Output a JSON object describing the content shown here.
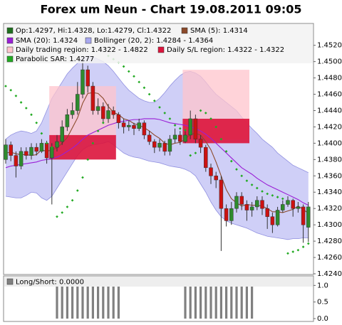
{
  "chart_data": [
    {
      "type": "candlestick",
      "title": "Forex um Neun - Chart 19.08.2011 09:05",
      "legend_label": "Op:1.4297, Hi:1.4328, Lo:1.4279, Cl:1.4322",
      "legend_color": "#1f6f1f",
      "up_color": "#2e8b2e",
      "down_color": "#cc1111",
      "ylim": [
        1.424,
        1.4545
      ],
      "yticks": [
        {
          "value": 1.424,
          "label": "1.4240"
        },
        {
          "value": 1.426,
          "label": "1.4260"
        },
        {
          "value": 1.428,
          "label": "1.4280"
        },
        {
          "value": 1.43,
          "label": "1.4300"
        },
        {
          "value": 1.432,
          "label": "1.4320"
        },
        {
          "value": 1.434,
          "label": "1.4340"
        },
        {
          "value": 1.436,
          "label": "1.4360"
        },
        {
          "value": 1.438,
          "label": "1.4380"
        },
        {
          "value": 1.44,
          "label": "1.4400"
        },
        {
          "value": 1.442,
          "label": "1.4420"
        },
        {
          "value": 1.444,
          "label": "1.4440"
        },
        {
          "value": 1.446,
          "label": "1.4460"
        },
        {
          "value": 1.448,
          "label": "1.4480"
        },
        {
          "value": 1.45,
          "label": "1.4500"
        },
        {
          "value": 1.452,
          "label": "1.4520"
        }
      ],
      "open": [
        1.438,
        1.4398,
        1.4385,
        1.4372,
        1.439,
        1.4385,
        1.4395,
        1.439,
        1.44,
        1.4382,
        1.4395,
        1.4402,
        1.442,
        1.4435,
        1.444,
        1.446,
        1.449,
        1.447,
        1.444,
        1.4445,
        1.443,
        1.444,
        1.4435,
        1.4425,
        1.442,
        1.4422,
        1.4418,
        1.4425,
        1.441,
        1.4402,
        1.4395,
        1.44,
        1.439,
        1.4405,
        1.441,
        1.4402,
        1.441,
        1.443,
        1.4405,
        1.4395,
        1.437,
        1.436,
        1.4355,
        1.432,
        1.4305,
        1.432,
        1.4335,
        1.4325,
        1.4318,
        1.4322,
        1.433,
        1.432,
        1.431,
        1.43,
        1.4318,
        1.4325,
        1.433,
        1.432,
        1.4322,
        1.4297
      ],
      "high": [
        1.4405,
        1.4402,
        1.439,
        1.4395,
        1.4395,
        1.44,
        1.44,
        1.4405,
        1.4403,
        1.44,
        1.441,
        1.4428,
        1.4442,
        1.445,
        1.4475,
        1.4503,
        1.4495,
        1.4475,
        1.4455,
        1.445,
        1.4448,
        1.4445,
        1.4438,
        1.443,
        1.4428,
        1.4425,
        1.443,
        1.4428,
        1.4415,
        1.4405,
        1.4405,
        1.4403,
        1.441,
        1.4418,
        1.4415,
        1.4415,
        1.444,
        1.4435,
        1.441,
        1.4398,
        1.4375,
        1.4365,
        1.436,
        1.4325,
        1.4328,
        1.434,
        1.434,
        1.433,
        1.4328,
        1.4335,
        1.4335,
        1.4325,
        1.4315,
        1.4322,
        1.433,
        1.4335,
        1.4332,
        1.4328,
        1.4325,
        1.4328
      ],
      "low": [
        1.4375,
        1.4378,
        1.4358,
        1.4368,
        1.438,
        1.438,
        1.4385,
        1.4388,
        1.4375,
        1.4325,
        1.439,
        1.4398,
        1.4415,
        1.443,
        1.4435,
        1.4455,
        1.4462,
        1.4435,
        1.4435,
        1.4425,
        1.4425,
        1.443,
        1.4418,
        1.4412,
        1.4415,
        1.441,
        1.4415,
        1.4405,
        1.4398,
        1.4388,
        1.439,
        1.4385,
        1.4385,
        1.44,
        1.4398,
        1.44,
        1.4405,
        1.44,
        1.4388,
        1.4365,
        1.435,
        1.4345,
        1.4268,
        1.4298,
        1.43,
        1.4315,
        1.4318,
        1.4305,
        1.431,
        1.4318,
        1.4312,
        1.4295,
        1.429,
        1.4298,
        1.4315,
        1.4322,
        1.431,
        1.4315,
        1.4278,
        1.4279
      ],
      "close": [
        1.4398,
        1.4385,
        1.4372,
        1.439,
        1.4385,
        1.4395,
        1.439,
        1.44,
        1.4382,
        1.4395,
        1.4402,
        1.442,
        1.4435,
        1.444,
        1.446,
        1.449,
        1.447,
        1.444,
        1.4445,
        1.443,
        1.444,
        1.4435,
        1.4425,
        1.442,
        1.4422,
        1.4418,
        1.4425,
        1.441,
        1.4402,
        1.4395,
        1.44,
        1.439,
        1.4405,
        1.441,
        1.4402,
        1.441,
        1.443,
        1.4405,
        1.4395,
        1.437,
        1.436,
        1.4355,
        1.432,
        1.4305,
        1.432,
        1.4335,
        1.4325,
        1.4318,
        1.4322,
        1.433,
        1.432,
        1.431,
        1.43,
        1.4318,
        1.4325,
        1.433,
        1.432,
        1.4322,
        1.43,
        1.4322
      ],
      "series": [
        {
          "name": "SMA (5): 1.4314",
          "color": "#8b4a2b",
          "values": [
            1.4388,
            1.4389,
            1.4387,
            1.4386,
            1.4386,
            1.4385,
            1.4386,
            1.4392,
            1.439,
            1.4392,
            1.4394,
            1.44,
            1.4407,
            1.4419,
            1.4431,
            1.4449,
            1.4461,
            1.4462,
            1.4461,
            1.4455,
            1.4445,
            1.4438,
            1.4435,
            1.443,
            1.4428,
            1.4424,
            1.4422,
            1.4419,
            1.4415,
            1.441,
            1.4406,
            1.44,
            1.4398,
            1.44,
            1.4401,
            1.4405,
            1.4411,
            1.4412,
            1.441,
            1.4402,
            1.4392,
            1.4377,
            1.436,
            1.4343,
            1.4332,
            1.4327,
            1.4323,
            1.4325,
            1.4324,
            1.4324,
            1.4323,
            1.432,
            1.4316,
            1.4316,
            1.4315,
            1.4317,
            1.4319,
            1.4323,
            1.4319,
            1.4314
          ]
        },
        {
          "name": "SMA (20): 1.4324",
          "color": "#9a1fd6",
          "values": [
            1.437,
            1.4372,
            1.4373,
            1.4374,
            1.4375,
            1.4376,
            1.4377,
            1.4379,
            1.438,
            1.4381,
            1.4383,
            1.4386,
            1.439,
            1.4394,
            1.4399,
            1.4405,
            1.441,
            1.4413,
            1.4416,
            1.4419,
            1.4422,
            1.4424,
            1.4426,
            1.4427,
            1.4428,
            1.4429,
            1.4429,
            1.443,
            1.443,
            1.443,
            1.4429,
            1.4427,
            1.4425,
            1.4424,
            1.4423,
            1.4422,
            1.442,
            1.4418,
            1.4415,
            1.4411,
            1.4406,
            1.44,
            1.4394,
            1.4388,
            1.4382,
            1.4376,
            1.437,
            1.4366,
            1.4362,
            1.4357,
            1.4353,
            1.4349,
            1.4346,
            1.4343,
            1.434,
            1.4337,
            1.4334,
            1.4331,
            1.4327,
            1.4324
          ]
        },
        {
          "name": "Bollinger (20, 2): 1.4284 - 1.4364",
          "color": "#a8a8f0",
          "upper": [
            1.4405,
            1.441,
            1.4413,
            1.4415,
            1.4414,
            1.4412,
            1.4415,
            1.4425,
            1.444,
            1.4455,
            1.4465,
            1.4475,
            1.4485,
            1.4492,
            1.4498,
            1.4505,
            1.4507,
            1.4506,
            1.4503,
            1.45,
            1.4495,
            1.4488,
            1.448,
            1.4472,
            1.4465,
            1.446,
            1.4455,
            1.4452,
            1.445,
            1.445,
            1.4455,
            1.4462,
            1.447,
            1.4477,
            1.4483,
            1.4487,
            1.4488,
            1.4486,
            1.4482,
            1.4475,
            1.4467,
            1.446,
            1.4455,
            1.445,
            1.4445,
            1.444,
            1.4432,
            1.4425,
            1.4418,
            1.4412,
            1.4405,
            1.44,
            1.4395,
            1.4388,
            1.4383,
            1.4378,
            1.4373,
            1.437,
            1.4367,
            1.4364
          ],
          "lower": [
            1.4335,
            1.4334,
            1.4333,
            1.4333,
            1.4336,
            1.434,
            1.4339,
            1.4333,
            1.433,
            1.4335,
            1.4345,
            1.4355,
            1.4365,
            1.4375,
            1.4385,
            1.4392,
            1.4396,
            1.4398,
            1.4399,
            1.44,
            1.4402,
            1.4398,
            1.4393,
            1.4388,
            1.4385,
            1.4383,
            1.4382,
            1.438,
            1.4378,
            1.4377,
            1.4376,
            1.4374,
            1.4372,
            1.4371,
            1.437,
            1.4368,
            1.4365,
            1.436,
            1.435,
            1.434,
            1.4328,
            1.4318,
            1.431,
            1.4305,
            1.4302,
            1.43,
            1.4298,
            1.4296,
            1.4293,
            1.429,
            1.4288,
            1.4286,
            1.4285,
            1.4284,
            1.4283,
            1.4282,
            1.4283,
            1.4283,
            1.4284,
            1.4284
          ]
        },
        {
          "name": "Parabolic SAR: 1.4277",
          "color": "#22aa22",
          "values": [
            1.447,
            1.4465,
            1.4458,
            1.445,
            1.4443,
            1.4435,
            1.4425,
            1.4412,
            1.44,
            1.4395,
            1.431,
            1.4315,
            1.4322,
            1.433,
            1.4342,
            1.4358,
            1.438,
            1.44,
            1.4415,
            1.4425,
            1.4507,
            1.4503,
            1.4499,
            1.4494,
            1.4488,
            1.4482,
            1.4475,
            1.4468,
            1.446,
            1.4452,
            1.4444,
            1.4437,
            1.443,
            1.4422,
            1.4418,
            1.4416,
            1.4385,
            1.4388,
            1.444,
            1.4437,
            1.443,
            1.442,
            1.4405,
            1.439,
            1.4378,
            1.4368,
            1.436,
            1.4354,
            1.4349,
            1.4345,
            1.4341,
            1.4338,
            1.4336,
            1.4334,
            1.4332,
            1.4265,
            1.4267,
            1.4269,
            1.4273,
            1.4277
          ]
        }
      ],
      "regions": [
        {
          "name": "Daily trading region: 1.4322 - 1.4822",
          "color": "#ffc4cc",
          "areas": [
            {
              "start": 9,
              "end": 21,
              "top": 1.447,
              "bottom": 1.4405
            },
            {
              "start": 35,
              "end": 47,
              "top": 1.449,
              "bottom": 1.4405
            }
          ]
        },
        {
          "name": "Daily S/L region: 1.4322 - 1.4322",
          "color": "#dc143c",
          "areas": [
            {
              "start": 9,
              "end": 21,
              "top": 1.441,
              "bottom": 1.438
            },
            {
              "start": 35,
              "end": 47,
              "top": 1.443,
              "bottom": 1.44
            }
          ]
        }
      ]
    },
    {
      "type": "bar",
      "ylim": [
        0,
        1.2
      ],
      "yticks": [
        {
          "value": 0,
          "label": "0.0"
        },
        {
          "value": 0.5,
          "label": "0.5"
        },
        {
          "value": 1,
          "label": "1.0"
        }
      ],
      "series": [
        {
          "name": "Long/Short: 0.0000",
          "color": "#808080",
          "values": [
            0,
            0,
            0,
            0,
            0,
            0,
            0,
            0,
            0,
            0,
            1,
            1,
            1,
            1,
            1,
            1,
            1,
            1,
            1,
            1,
            1,
            1,
            1,
            0,
            0,
            0,
            0,
            0,
            0,
            0,
            0,
            0,
            0,
            0,
            0,
            1,
            1,
            1,
            1,
            1,
            1,
            1,
            1,
            1,
            1,
            1,
            1,
            1,
            1,
            0,
            0,
            0,
            0,
            0,
            0,
            0,
            0,
            0,
            0,
            0
          ]
        }
      ]
    }
  ]
}
